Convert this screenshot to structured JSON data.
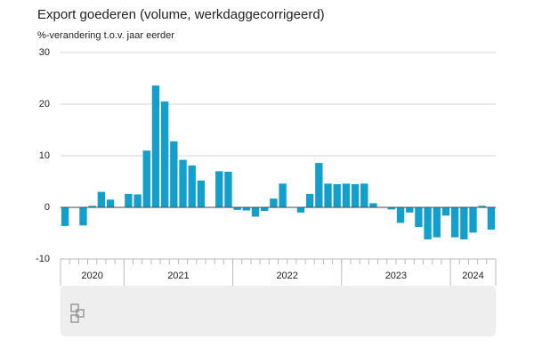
{
  "chart_data": {
    "type": "bar",
    "title": "Export goederen (volume, werkdaggecorrigeerd)",
    "subtitle": "%-verandering t.o.v. jaar eerder",
    "categories": [
      null,
      null,
      null,
      null,
      null,
      null,
      null,
      null,
      null,
      null,
      null,
      null,
      null,
      null,
      null,
      null,
      null,
      null,
      null,
      null,
      null,
      null,
      null,
      null,
      null,
      null,
      null,
      null,
      null,
      null,
      null,
      null,
      null,
      null,
      null,
      null,
      null,
      null,
      null,
      null,
      null,
      null,
      null,
      null,
      null,
      null,
      null,
      null
    ],
    "values": [
      -3.6,
      0,
      -3.5,
      0.3,
      3.0,
      1.5,
      0,
      2.6,
      2.5,
      11.0,
      23.6,
      20.5,
      12.8,
      9.2,
      8.1,
      5.2,
      0,
      7.0,
      6.9,
      -0.5,
      -0.6,
      -1.8,
      -0.7,
      1.7,
      4.6,
      0,
      -1.0,
      2.6,
      8.6,
      4.6,
      4.5,
      4.6,
      4.5,
      4.6,
      0.8,
      0,
      -0.4,
      -3.0,
      -1.0,
      -3.8,
      -6.2,
      -5.8,
      -1.6,
      -5.8,
      -6.2,
      -4.9,
      0.3,
      -4.3
    ],
    "x_groups": [
      {
        "label": "2020",
        "count": 7
      },
      {
        "label": "2021",
        "count": 12
      },
      {
        "label": "2022",
        "count": 12
      },
      {
        "label": "2023",
        "count": 12
      },
      {
        "label": "2024",
        "count": 5
      }
    ],
    "color": "#139fcc",
    "ylim": [
      -10,
      30
    ],
    "yticks": [
      -10,
      0,
      10,
      20,
      30
    ],
    "grid": true
  }
}
